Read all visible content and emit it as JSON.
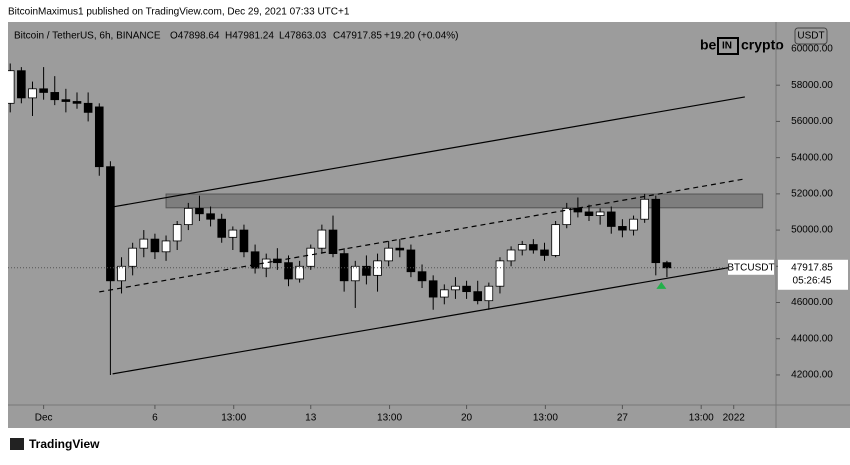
{
  "header": "BitcoinMaximus1 published on TradingView.com, Dec 29, 2021 07:33 UTC+1",
  "legend": {
    "symbol": "Bitcoin / TetherUS, 6h, BINANCE",
    "open": "O47898.64",
    "high": "H47981.24",
    "low": "L47863.03",
    "close": "C47917.85",
    "change": "+19.20 (+0.04%)"
  },
  "logo": {
    "left": "be",
    "middle": "IN",
    "right": "crypto"
  },
  "currency_button": "USDT",
  "footer": "TradingView",
  "chart_data": {
    "type": "candlestick",
    "background": "#9c9c9c",
    "up_color": "#ffffff",
    "down_color": "#000000",
    "x": [
      -1.5,
      -1,
      -0.5,
      0,
      0.5,
      1,
      1.5,
      2,
      2.5,
      3,
      3.5,
      4,
      4.5,
      5,
      5.5,
      6,
      6.5,
      7,
      7.5,
      8,
      8.5,
      9,
      9.5,
      10,
      10.5,
      11,
      11.5,
      12,
      12.5,
      13,
      13.5,
      14,
      14.5,
      15,
      15.5,
      16,
      16.5,
      17,
      17.5,
      18,
      18.5,
      19,
      19.5,
      20,
      20.5,
      21,
      21.5,
      22,
      22.5,
      23,
      23.5,
      24,
      24.5,
      25,
      25.5,
      26,
      26.5,
      27,
      27.5,
      28
    ],
    "open": [
      57000,
      58800,
      57300,
      57800,
      57600,
      57200,
      57100,
      57000,
      56800,
      53500,
      47200,
      48000,
      49000,
      49500,
      48800,
      49400,
      50300,
      51200,
      50900,
      50600,
      49600,
      50000,
      48800,
      47900,
      48400,
      48200,
      47300,
      48000,
      49000,
      50000,
      48700,
      47200,
      48000,
      47500,
      48300,
      49000,
      48900,
      47700,
      47200,
      46300,
      46700,
      46900,
      46600,
      46100,
      46900,
      48300,
      48900,
      49200,
      48900,
      48600,
      50300,
      51200,
      51000,
      50800,
      51000,
      50200,
      50000,
      50600,
      51700,
      48200
    ],
    "high": [
      59200,
      59000,
      58200,
      59000,
      58500,
      57800,
      57600,
      57600,
      57000,
      53800,
      48500,
      49300,
      50000,
      49800,
      49700,
      50500,
      51500,
      51900,
      51300,
      50900,
      50200,
      50300,
      49200,
      48700,
      49000,
      48600,
      48300,
      49200,
      50300,
      50800,
      49000,
      48300,
      48600,
      48700,
      49400,
      49500,
      49200,
      48100,
      47500,
      47000,
      47400,
      47200,
      47200,
      47100,
      48500,
      49100,
      49400,
      49500,
      49300,
      50500,
      51500,
      51800,
      51400,
      51200,
      51300,
      50600,
      50800,
      52000,
      51900,
      48300
    ],
    "low": [
      56500,
      57000,
      56300,
      57200,
      56900,
      56500,
      56700,
      56000,
      53000,
      42000,
      46500,
      47500,
      48500,
      48400,
      48300,
      48900,
      50000,
      50500,
      50200,
      49300,
      48900,
      48500,
      47600,
      47400,
      47800,
      46900,
      47100,
      47800,
      48700,
      48500,
      46600,
      45700,
      47000,
      46600,
      48000,
      48500,
      47400,
      46800,
      45600,
      45900,
      46200,
      46200,
      45900,
      45600,
      46500,
      48000,
      48600,
      48700,
      48300,
      48500,
      50100,
      50700,
      50500,
      50300,
      49800,
      49600,
      49700,
      50400,
      47500,
      47400
    ],
    "close": [
      58800,
      57300,
      57800,
      57600,
      57200,
      57100,
      57000,
      56500,
      53500,
      47200,
      48000,
      49000,
      49500,
      48800,
      49400,
      50300,
      51200,
      50900,
      50600,
      49600,
      50000,
      48800,
      47900,
      48400,
      48200,
      47300,
      48000,
      49000,
      50000,
      48700,
      47200,
      48000,
      47500,
      48300,
      49000,
      48900,
      47700,
      47200,
      46300,
      46700,
      46900,
      46600,
      46100,
      46900,
      48300,
      48900,
      49200,
      48900,
      48600,
      50300,
      51200,
      51000,
      50800,
      51000,
      50200,
      50000,
      50600,
      51700,
      48200,
      47917.85
    ],
    "last_price": {
      "symbol": "BTCUSDT",
      "value": 47917.85,
      "countdown": "05:26:45"
    },
    "lines": [
      {
        "x": [
          3.1,
          31.5
        ],
        "y": [
          51278,
          57350
        ],
        "dashed": false
      },
      {
        "x": [
          2.5,
          31.5
        ],
        "y": [
          46586,
          52824
        ],
        "dashed": true
      },
      {
        "x": [
          3.1,
          31.5
        ],
        "y": [
          42060,
          48077
        ],
        "dashed": false
      }
    ],
    "zone": {
      "x": [
        5.5,
        32.3
      ],
      "y": [
        51230,
        51990
      ]
    },
    "marker": {
      "x": 27.75,
      "y": 46920,
      "color": "#22b04a"
    },
    "xlim": [
      -1.6,
      32.9
    ],
    "ylim": [
      40340,
      61490
    ],
    "xticks": [
      {
        "value": 0,
        "label": "Dec"
      },
      {
        "value": 5,
        "label": "6"
      },
      {
        "value": 8.54,
        "label": "13:00"
      },
      {
        "value": 12,
        "label": "13"
      },
      {
        "value": 15.54,
        "label": "13:00"
      },
      {
        "value": 19,
        "label": "20"
      },
      {
        "value": 22.54,
        "label": "13:00"
      },
      {
        "value": 26,
        "label": "27"
      },
      {
        "value": 29.54,
        "label": "13:00"
      },
      {
        "value": 31,
        "label": "2022"
      }
    ],
    "yticks": [
      {
        "value": 42000,
        "label": "42000.00"
      },
      {
        "value": 44000,
        "label": "44000.00"
      },
      {
        "value": 46000,
        "label": "46000.00"
      },
      {
        "value": 48000,
        "label": "48000.00"
      },
      {
        "value": 50000,
        "label": "50000.00"
      },
      {
        "value": 52000,
        "label": "52000.00"
      },
      {
        "value": 54000,
        "label": "54000.00"
      },
      {
        "value": 56000,
        "label": "56000.00"
      },
      {
        "value": 58000,
        "label": "58000.00"
      },
      {
        "value": 60000,
        "label": "60000.00"
      }
    ]
  }
}
